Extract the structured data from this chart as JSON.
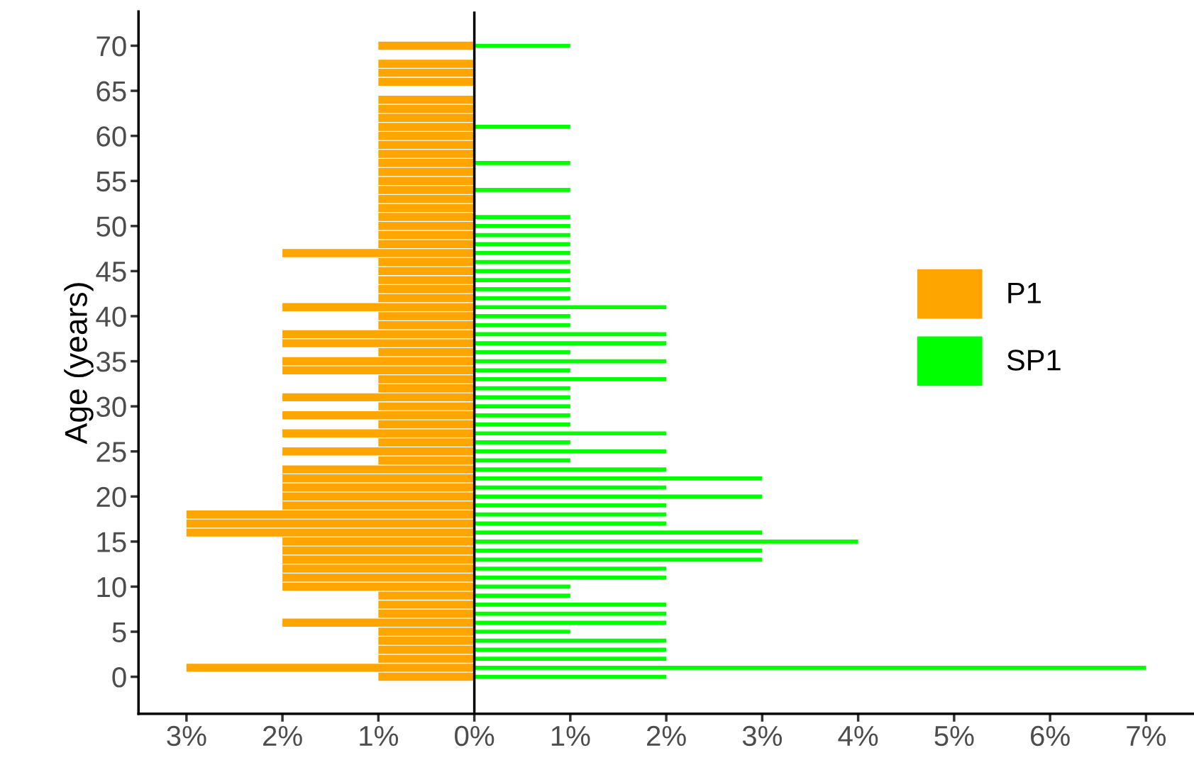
{
  "chart_data": {
    "type": "bar",
    "orientation": "horizontal",
    "ylabel": "Age (years)",
    "x": [
      0,
      1,
      2,
      3,
      4,
      5,
      6,
      7,
      8,
      9,
      10,
      11,
      12,
      13,
      14,
      15,
      16,
      17,
      18,
      19,
      20,
      21,
      22,
      23,
      24,
      25,
      26,
      27,
      28,
      29,
      30,
      31,
      32,
      33,
      34,
      35,
      36,
      37,
      38,
      39,
      40,
      41,
      42,
      43,
      44,
      45,
      46,
      47,
      48,
      49,
      50,
      51,
      52,
      53,
      54,
      55,
      56,
      57,
      58,
      59,
      60,
      61,
      62,
      63,
      64,
      65,
      66,
      67,
      68,
      69,
      70
    ],
    "series": [
      {
        "name": "P1",
        "color": "#ffa500",
        "values": [
          -1,
          -3,
          -1,
          -1,
          -1,
          -1,
          -2,
          -1,
          -1,
          -1,
          -2,
          -2,
          -2,
          -2,
          -2,
          -2,
          -3,
          -3,
          -3,
          -2,
          -2,
          -2,
          -2,
          -2,
          -1,
          -2,
          -1,
          -2,
          -1,
          -2,
          -1,
          -2,
          -1,
          -1,
          -2,
          -2,
          -1,
          -2,
          -2,
          -1,
          -1,
          -2,
          -1,
          -1,
          -1,
          -1,
          -1,
          -2,
          -1,
          -1,
          -1,
          -1,
          -1,
          -1,
          -1,
          -1,
          -1,
          -1,
          -1,
          -1,
          -1,
          -1,
          -1,
          -1,
          -1,
          null,
          -1,
          -1,
          -1,
          null,
          -1
        ]
      },
      {
        "name": "SP1",
        "color": "#00ff00",
        "values": [
          2,
          7,
          2,
          2,
          2,
          1,
          2,
          2,
          2,
          1,
          1,
          2,
          2,
          3,
          3,
          4,
          3,
          2,
          2,
          2,
          3,
          2,
          3,
          2,
          1,
          2,
          1,
          2,
          1,
          1,
          1,
          1,
          1,
          2,
          1,
          2,
          1,
          2,
          2,
          1,
          1,
          2,
          1,
          1,
          1,
          1,
          1,
          1,
          1,
          1,
          1,
          1,
          null,
          null,
          1,
          null,
          null,
          1,
          null,
          null,
          null,
          1,
          null,
          null,
          null,
          null,
          null,
          null,
          null,
          null,
          1
        ]
      }
    ],
    "xlim": [
      -3.5,
      7.5
    ],
    "xticks": [
      {
        "value": -3,
        "label": "3%"
      },
      {
        "value": -2,
        "label": "2%"
      },
      {
        "value": -1,
        "label": "1%"
      },
      {
        "value": 0,
        "label": "0%"
      },
      {
        "value": 1,
        "label": "1%"
      },
      {
        "value": 2,
        "label": "2%"
      },
      {
        "value": 3,
        "label": "3%"
      },
      {
        "value": 4,
        "label": "4%"
      },
      {
        "value": 5,
        "label": "5%"
      },
      {
        "value": 6,
        "label": "6%"
      },
      {
        "value": 7,
        "label": "7%"
      }
    ],
    "ylim": [
      -4.1,
      73.8
    ],
    "yticks": [
      0,
      5,
      10,
      15,
      20,
      25,
      30,
      35,
      40,
      45,
      50,
      55,
      60,
      65,
      70
    ],
    "ref_lines": [
      {
        "axis": "x",
        "value": 0,
        "color": "#000000"
      }
    ],
    "grid": false,
    "legend": "right"
  }
}
